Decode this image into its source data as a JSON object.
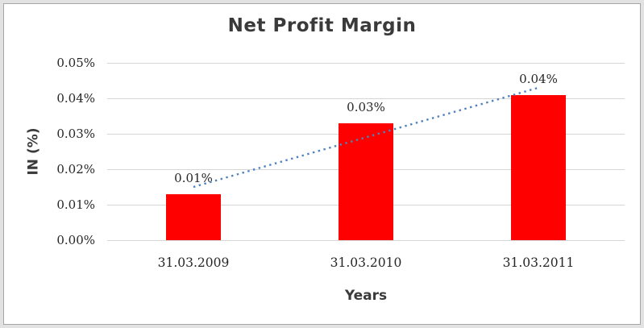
{
  "chart_data": {
    "type": "bar",
    "title": "Net Profit Margin",
    "xlabel": "Years",
    "ylabel": "IN (%)",
    "categories": [
      "31.03.2009",
      "31.03.2010",
      "31.03.2011"
    ],
    "series": [
      {
        "name": "Net Profit Margin",
        "values": [
          0.013,
          0.033,
          0.041
        ]
      }
    ],
    "data_labels": [
      "0.01%",
      "0.03%",
      "0.04%"
    ],
    "y_ticks": [
      {
        "value": 0.0,
        "label": "0.00%"
      },
      {
        "value": 0.01,
        "label": "0.01%"
      },
      {
        "value": 0.02,
        "label": "0.02%"
      },
      {
        "value": 0.03,
        "label": "0.03%"
      },
      {
        "value": 0.04,
        "label": "0.04%"
      },
      {
        "value": 0.05,
        "label": "0.05%"
      }
    ],
    "ylim": [
      0,
      0.05
    ],
    "grid": true,
    "legend_position": "none",
    "trendline": {
      "type": "linear",
      "style": "dotted",
      "span": "first-to-last-category"
    },
    "colors": {
      "bar": "#ff0000",
      "trendline": "#4f81bd",
      "gridline": "#d6d6d6",
      "title_text": "#3a3a3a",
      "axis_title_text": "#3a3a3a",
      "tick_text": "#262626",
      "frame_band": "#e2e2e2",
      "frame_line": "#a6a6a6"
    }
  }
}
